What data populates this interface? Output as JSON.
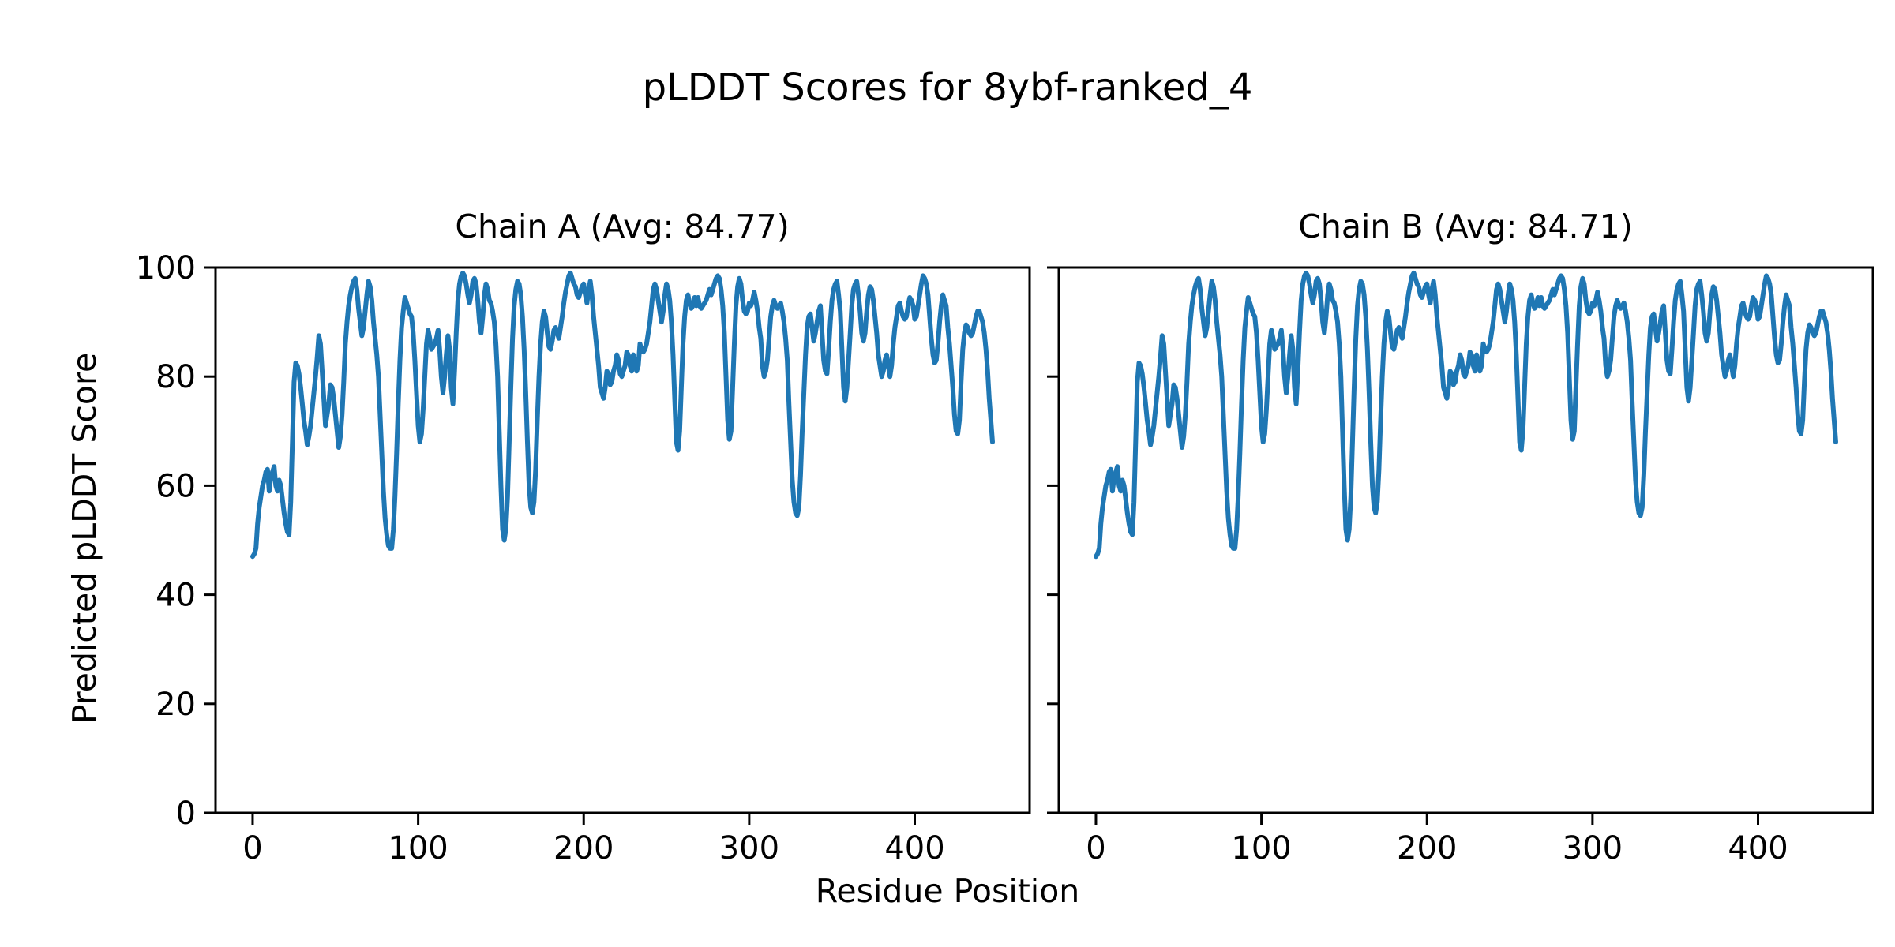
{
  "chart_data": {
    "type": "line",
    "suptitle": "pLDDT Scores for 8ybf-ranked_4",
    "xlabel": "Residue Position",
    "ylabel": "Predicted pLDDT Score",
    "xlim": [
      -22.4,
      469.4
    ],
    "ylim": [
      0,
      100
    ],
    "xticks": [
      0,
      100,
      200,
      300,
      400
    ],
    "yticks": [
      0,
      20,
      40,
      60,
      80,
      100
    ],
    "grid": false,
    "legend": "none",
    "line_color": "#1f77b4",
    "axis_color": "#000000",
    "background_color": "#ffffff",
    "subplots": [
      {
        "title": "Chain A (Avg: 84.77)",
        "chain": "A",
        "avg": 84.77,
        "points_ref": "residue_profile",
        "y_tick_labels_shown": true
      },
      {
        "title": "Chain B (Avg: 84.71)",
        "chain": "B",
        "avg": 84.71,
        "points_ref": "residue_profile",
        "y_tick_labels_shown": false
      }
    ],
    "residue_profile": [
      [
        0,
        47
      ],
      [
        1,
        47.5
      ],
      [
        2,
        48.5
      ],
      [
        3,
        53
      ],
      [
        4,
        56
      ],
      [
        5,
        58
      ],
      [
        6,
        60
      ],
      [
        7,
        61
      ],
      [
        8,
        62.5
      ],
      [
        9,
        63
      ],
      [
        10,
        59
      ],
      [
        11,
        61.5
      ],
      [
        12,
        62.5
      ],
      [
        13,
        63.5
      ],
      [
        14,
        60
      ],
      [
        15,
        59
      ],
      [
        16,
        61
      ],
      [
        17,
        60
      ],
      [
        18,
        57.5
      ],
      [
        19,
        55
      ],
      [
        20,
        53
      ],
      [
        21,
        51.5
      ],
      [
        22,
        51
      ],
      [
        23,
        57
      ],
      [
        24,
        68
      ],
      [
        25,
        79
      ],
      [
        26,
        82.5
      ],
      [
        27,
        82
      ],
      [
        28,
        80.5
      ],
      [
        29,
        78
      ],
      [
        30,
        75
      ],
      [
        31,
        72
      ],
      [
        32,
        70
      ],
      [
        33,
        67.5
      ],
      [
        34,
        69
      ],
      [
        35,
        71
      ],
      [
        36,
        74
      ],
      [
        37,
        77
      ],
      [
        38,
        80
      ],
      [
        39,
        83.5
      ],
      [
        40,
        87.5
      ],
      [
        41,
        86
      ],
      [
        42,
        81
      ],
      [
        43,
        76
      ],
      [
        44,
        71
      ],
      [
        45,
        73
      ],
      [
        46,
        75
      ],
      [
        47,
        78.5
      ],
      [
        48,
        78
      ],
      [
        49,
        76
      ],
      [
        50,
        73
      ],
      [
        51,
        70
      ],
      [
        52,
        67
      ],
      [
        53,
        69
      ],
      [
        54,
        73
      ],
      [
        55,
        79
      ],
      [
        56,
        86
      ],
      [
        57,
        90
      ],
      [
        58,
        93
      ],
      [
        59,
        95
      ],
      [
        60,
        96.5
      ],
      [
        61,
        97.5
      ],
      [
        62,
        98
      ],
      [
        63,
        96
      ],
      [
        64,
        92.5
      ],
      [
        65,
        90
      ],
      [
        66,
        87.5
      ],
      [
        67,
        89
      ],
      [
        68,
        92
      ],
      [
        69,
        95
      ],
      [
        70,
        97.5
      ],
      [
        71,
        96.5
      ],
      [
        72,
        94
      ],
      [
        73,
        90
      ],
      [
        74,
        87
      ],
      [
        75,
        84
      ],
      [
        76,
        80
      ],
      [
        77,
        73
      ],
      [
        78,
        66
      ],
      [
        79,
        59
      ],
      [
        80,
        54
      ],
      [
        81,
        51
      ],
      [
        82,
        49
      ],
      [
        83,
        48.5
      ],
      [
        84,
        48.5
      ],
      [
        85,
        52
      ],
      [
        86,
        58
      ],
      [
        87,
        66
      ],
      [
        88,
        75
      ],
      [
        89,
        83
      ],
      [
        90,
        89
      ],
      [
        91,
        92
      ],
      [
        92,
        94.5
      ],
      [
        93,
        93.5
      ],
      [
        94,
        92.5
      ],
      [
        95,
        91.5
      ],
      [
        96,
        91
      ],
      [
        97,
        88
      ],
      [
        98,
        83
      ],
      [
        99,
        77
      ],
      [
        100,
        71
      ],
      [
        101,
        68
      ],
      [
        102,
        69.5
      ],
      [
        103,
        74
      ],
      [
        104,
        80
      ],
      [
        105,
        86
      ],
      [
        106,
        88.5
      ],
      [
        107,
        87
      ],
      [
        108,
        85
      ],
      [
        109,
        85.5
      ],
      [
        110,
        86
      ],
      [
        111,
        87
      ],
      [
        112,
        88.5
      ],
      [
        113,
        85
      ],
      [
        114,
        80
      ],
      [
        115,
        77
      ],
      [
        116,
        80
      ],
      [
        117,
        84
      ],
      [
        118,
        87.5
      ],
      [
        119,
        85
      ],
      [
        120,
        78
      ],
      [
        121,
        75
      ],
      [
        122,
        81
      ],
      [
        123,
        88
      ],
      [
        124,
        94
      ],
      [
        125,
        97
      ],
      [
        126,
        98.5
      ],
      [
        127,
        99
      ],
      [
        128,
        98.5
      ],
      [
        129,
        97
      ],
      [
        130,
        95
      ],
      [
        131,
        93.5
      ],
      [
        132,
        95
      ],
      [
        133,
        97.5
      ],
      [
        134,
        98
      ],
      [
        135,
        97
      ],
      [
        136,
        94
      ],
      [
        137,
        90
      ],
      [
        138,
        88
      ],
      [
        139,
        91
      ],
      [
        140,
        95
      ],
      [
        141,
        97
      ],
      [
        142,
        96
      ],
      [
        143,
        94
      ],
      [
        144,
        93.5
      ],
      [
        145,
        92
      ],
      [
        146,
        90
      ],
      [
        147,
        86
      ],
      [
        148,
        80
      ],
      [
        149,
        70
      ],
      [
        150,
        60
      ],
      [
        151,
        52
      ],
      [
        152,
        50
      ],
      [
        153,
        52
      ],
      [
        154,
        58
      ],
      [
        155,
        68
      ],
      [
        156,
        78
      ],
      [
        157,
        87
      ],
      [
        158,
        93
      ],
      [
        159,
        96
      ],
      [
        160,
        97.5
      ],
      [
        161,
        97
      ],
      [
        162,
        95
      ],
      [
        163,
        91
      ],
      [
        164,
        85
      ],
      [
        165,
        77
      ],
      [
        166,
        68
      ],
      [
        167,
        60
      ],
      [
        168,
        56
      ],
      [
        169,
        55
      ],
      [
        170,
        57
      ],
      [
        171,
        63
      ],
      [
        172,
        72
      ],
      [
        173,
        80
      ],
      [
        174,
        86
      ],
      [
        175,
        90
      ],
      [
        176,
        92
      ],
      [
        177,
        91
      ],
      [
        178,
        88
      ],
      [
        179,
        85.5
      ],
      [
        180,
        85
      ],
      [
        181,
        86.5
      ],
      [
        182,
        88.5
      ],
      [
        183,
        89
      ],
      [
        184,
        88
      ],
      [
        185,
        87
      ],
      [
        186,
        89
      ],
      [
        187,
        91
      ],
      [
        188,
        93.5
      ],
      [
        189,
        95.5
      ],
      [
        190,
        97
      ],
      [
        191,
        98.5
      ],
      [
        192,
        99
      ],
      [
        193,
        98
      ],
      [
        194,
        97
      ],
      [
        195,
        96.5
      ],
      [
        196,
        95
      ],
      [
        197,
        94.5
      ],
      [
        198,
        95.5
      ],
      [
        199,
        96.5
      ],
      [
        200,
        97
      ],
      [
        201,
        95
      ],
      [
        202,
        93.5
      ],
      [
        203,
        96
      ],
      [
        204,
        97.5
      ],
      [
        205,
        95
      ],
      [
        206,
        91
      ],
      [
        207,
        88
      ],
      [
        208,
        85
      ],
      [
        209,
        82
      ],
      [
        210,
        78
      ],
      [
        211,
        77
      ],
      [
        212,
        76
      ],
      [
        213,
        78
      ],
      [
        214,
        81
      ],
      [
        215,
        80.5
      ],
      [
        216,
        78.5
      ],
      [
        217,
        79
      ],
      [
        218,
        81
      ],
      [
        219,
        82
      ],
      [
        220,
        84
      ],
      [
        221,
        83
      ],
      [
        222,
        80.5
      ],
      [
        223,
        80
      ],
      [
        224,
        81
      ],
      [
        225,
        82
      ],
      [
        226,
        84.5
      ],
      [
        227,
        84
      ],
      [
        228,
        82
      ],
      [
        229,
        81
      ],
      [
        230,
        84
      ],
      [
        231,
        83
      ],
      [
        232,
        81
      ],
      [
        233,
        82
      ],
      [
        234,
        86
      ],
      [
        235,
        85
      ],
      [
        236,
        84.5
      ],
      [
        237,
        85
      ],
      [
        238,
        86
      ],
      [
        239,
        88
      ],
      [
        240,
        90
      ],
      [
        241,
        93
      ],
      [
        242,
        96
      ],
      [
        243,
        97
      ],
      [
        244,
        96
      ],
      [
        245,
        94
      ],
      [
        246,
        92
      ],
      [
        247,
        90
      ],
      [
        248,
        92
      ],
      [
        249,
        95
      ],
      [
        250,
        97
      ],
      [
        251,
        96
      ],
      [
        252,
        94
      ],
      [
        253,
        90
      ],
      [
        254,
        84
      ],
      [
        255,
        76
      ],
      [
        256,
        68
      ],
      [
        257,
        66.5
      ],
      [
        258,
        70
      ],
      [
        259,
        78
      ],
      [
        260,
        86
      ],
      [
        261,
        91
      ],
      [
        262,
        94
      ],
      [
        263,
        95
      ],
      [
        264,
        93.5
      ],
      [
        265,
        92.5
      ],
      [
        266,
        93
      ],
      [
        267,
        94.5
      ],
      [
        268,
        93
      ],
      [
        269,
        94.5
      ],
      [
        270,
        93
      ],
      [
        271,
        92.5
      ],
      [
        272,
        93
      ],
      [
        273,
        93.5
      ],
      [
        274,
        94
      ],
      [
        275,
        95
      ],
      [
        276,
        96
      ],
      [
        277,
        95
      ],
      [
        278,
        96
      ],
      [
        279,
        97
      ],
      [
        280,
        98
      ],
      [
        281,
        98.5
      ],
      [
        282,
        98
      ],
      [
        283,
        96
      ],
      [
        284,
        93
      ],
      [
        285,
        88
      ],
      [
        286,
        80
      ],
      [
        287,
        72
      ],
      [
        288,
        68.5
      ],
      [
        289,
        70
      ],
      [
        290,
        78
      ],
      [
        291,
        86
      ],
      [
        292,
        93
      ],
      [
        293,
        96.5
      ],
      [
        294,
        98
      ],
      [
        295,
        97
      ],
      [
        296,
        94
      ],
      [
        297,
        92
      ],
      [
        298,
        91.5
      ],
      [
        299,
        92
      ],
      [
        300,
        93.5
      ],
      [
        301,
        93
      ],
      [
        302,
        94
      ],
      [
        303,
        95.5
      ],
      [
        304,
        94
      ],
      [
        305,
        92
      ],
      [
        306,
        89
      ],
      [
        307,
        87
      ],
      [
        308,
        82
      ],
      [
        309,
        80
      ],
      [
        310,
        81
      ],
      [
        311,
        83
      ],
      [
        312,
        87
      ],
      [
        313,
        91
      ],
      [
        314,
        93
      ],
      [
        315,
        94
      ],
      [
        316,
        93
      ],
      [
        317,
        92.5
      ],
      [
        318,
        93
      ],
      [
        319,
        93.5
      ],
      [
        320,
        92
      ],
      [
        321,
        90
      ],
      [
        322,
        87
      ],
      [
        323,
        83
      ],
      [
        324,
        75
      ],
      [
        325,
        68
      ],
      [
        326,
        61
      ],
      [
        327,
        57
      ],
      [
        328,
        55
      ],
      [
        329,
        54.5
      ],
      [
        330,
        56
      ],
      [
        331,
        62
      ],
      [
        332,
        70
      ],
      [
        333,
        77
      ],
      [
        334,
        84
      ],
      [
        335,
        89
      ],
      [
        336,
        91
      ],
      [
        337,
        91.5
      ],
      [
        338,
        89
      ],
      [
        339,
        86.5
      ],
      [
        340,
        88
      ],
      [
        341,
        90
      ],
      [
        342,
        92
      ],
      [
        343,
        93
      ],
      [
        344,
        88
      ],
      [
        345,
        83
      ],
      [
        346,
        81
      ],
      [
        347,
        80.5
      ],
      [
        348,
        85
      ],
      [
        349,
        90
      ],
      [
        350,
        94
      ],
      [
        351,
        96
      ],
      [
        352,
        97
      ],
      [
        353,
        97.5
      ],
      [
        354,
        95
      ],
      [
        355,
        92
      ],
      [
        356,
        85
      ],
      [
        357,
        78
      ],
      [
        358,
        75.5
      ],
      [
        359,
        78
      ],
      [
        360,
        83
      ],
      [
        361,
        88
      ],
      [
        362,
        93
      ],
      [
        363,
        96
      ],
      [
        364,
        97
      ],
      [
        365,
        97.5
      ],
      [
        366,
        95
      ],
      [
        367,
        92
      ],
      [
        368,
        88
      ],
      [
        369,
        86.5
      ],
      [
        370,
        88
      ],
      [
        371,
        92
      ],
      [
        372,
        95
      ],
      [
        373,
        96.5
      ],
      [
        374,
        96
      ],
      [
        375,
        94
      ],
      [
        376,
        91
      ],
      [
        377,
        88
      ],
      [
        378,
        84
      ],
      [
        379,
        82
      ],
      [
        380,
        80
      ],
      [
        381,
        81
      ],
      [
        382,
        83
      ],
      [
        383,
        84
      ],
      [
        384,
        82
      ],
      [
        385,
        80
      ],
      [
        386,
        82
      ],
      [
        387,
        86
      ],
      [
        388,
        89
      ],
      [
        389,
        91
      ],
      [
        390,
        93
      ],
      [
        391,
        93.5
      ],
      [
        392,
        92
      ],
      [
        393,
        91
      ],
      [
        394,
        90.5
      ],
      [
        395,
        91
      ],
      [
        396,
        93
      ],
      [
        397,
        94.5
      ],
      [
        398,
        94
      ],
      [
        399,
        93
      ],
      [
        400,
        90.5
      ],
      [
        401,
        91
      ],
      [
        402,
        93
      ],
      [
        403,
        95
      ],
      [
        404,
        97
      ],
      [
        405,
        98.5
      ],
      [
        406,
        98
      ],
      [
        407,
        97
      ],
      [
        408,
        95
      ],
      [
        409,
        91
      ],
      [
        410,
        87
      ],
      [
        411,
        84
      ],
      [
        412,
        82.5
      ],
      [
        413,
        83
      ],
      [
        414,
        86
      ],
      [
        415,
        90
      ],
      [
        416,
        93
      ],
      [
        417,
        95
      ],
      [
        418,
        94
      ],
      [
        419,
        93
      ],
      [
        420,
        89
      ],
      [
        421,
        86
      ],
      [
        422,
        82
      ],
      [
        423,
        78
      ],
      [
        424,
        73
      ],
      [
        425,
        70
      ],
      [
        426,
        69.5
      ],
      [
        427,
        72
      ],
      [
        428,
        79
      ],
      [
        429,
        85
      ],
      [
        430,
        88
      ],
      [
        431,
        89.5
      ],
      [
        432,
        89
      ],
      [
        433,
        88
      ],
      [
        434,
        87.5
      ],
      [
        435,
        88
      ],
      [
        436,
        89.5
      ],
      [
        437,
        91
      ],
      [
        438,
        92
      ],
      [
        439,
        92
      ],
      [
        440,
        91
      ],
      [
        441,
        90
      ],
      [
        442,
        88
      ],
      [
        443,
        85
      ],
      [
        444,
        81
      ],
      [
        445,
        76
      ],
      [
        446,
        72
      ],
      [
        447,
        68
      ]
    ]
  }
}
